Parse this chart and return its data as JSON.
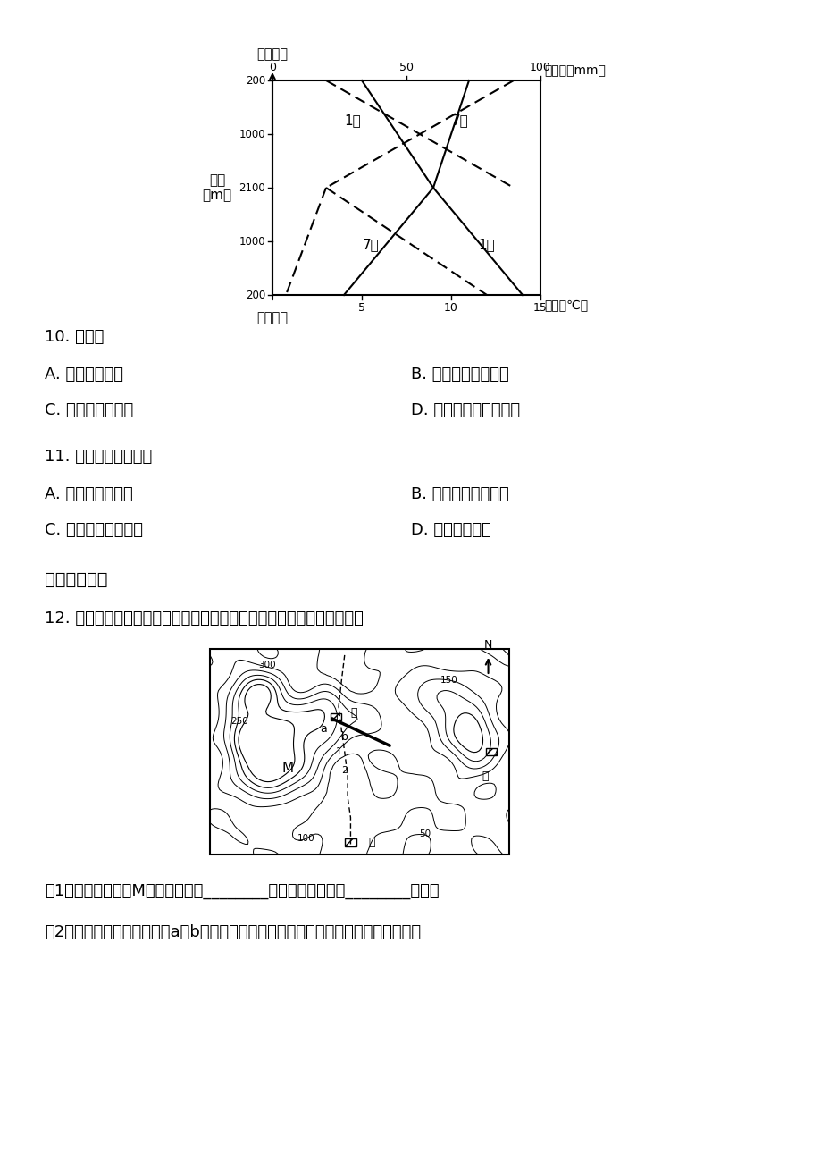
{
  "bg_color": "#ffffff",
  "q10_text": "10. 该山脉",
  "q10_A": "A. 北坡为迎风坡",
  "q10_B": "B. 地处南半球低纬度",
  "q10_C": "C. 南坡相对高度大",
  "q10_D": "D. 南坡自然带谱数目多",
  "q11_text": "11. 山脉基地植被带是",
  "q11_A": "A. 温带落叶阔叶林",
  "q11_B": "B. 亚热带常绿硬叶林",
  "q11_C": "C. 亚热带常绿阔叶林",
  "q11_D": "D. 亚寒带针叶林",
  "section2_title": "二、非选择题",
  "q12_text": "12. 读某地等高线地形图（单位：米），甲乙丙是聚落，据此回答问题。",
  "q12_sub1": "（1）图中有一陡崖M，其高度至少________米，乙村位于甲村________方向。",
  "q12_sub2": "（2）有人计划在甲村前河流a、b两处修建一码头，你认为哪处更合理，请说明理由。"
}
